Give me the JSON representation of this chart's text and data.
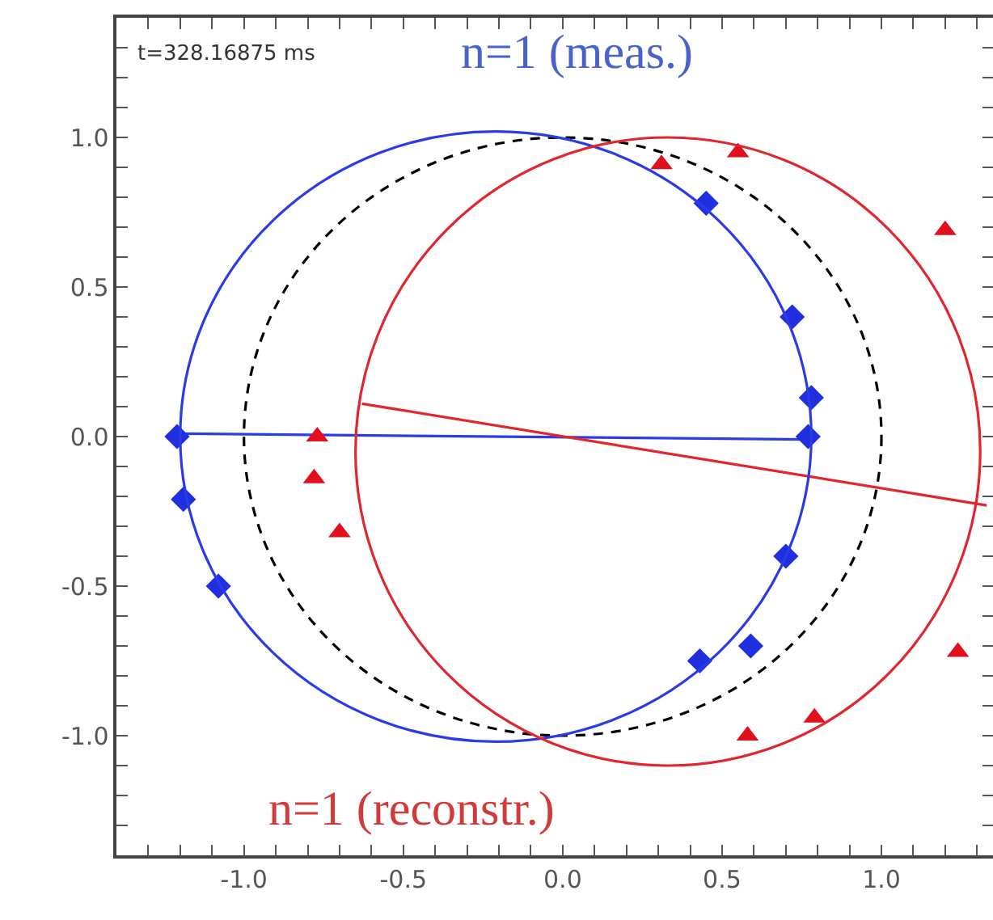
{
  "chart_data": {
    "type": "scatter",
    "annotations": [
      "t=328.16875 ms",
      "n=1 (meas.)",
      "n=1 (reconstr.)"
    ],
    "xlim": [
      -1.4,
      1.35
    ],
    "ylim": [
      -1.4,
      1.4
    ],
    "xticks": [
      {
        "value": -1.4,
        "label": null
      },
      {
        "value": -1.3,
        "label": null
      },
      {
        "value": -1.2,
        "label": null
      },
      {
        "value": -1.1,
        "label": null
      },
      {
        "value": -1,
        "label": "-1.0"
      },
      {
        "value": -0.9,
        "label": null
      },
      {
        "value": -0.8,
        "label": null
      },
      {
        "value": -0.7,
        "label": null
      },
      {
        "value": -0.6,
        "label": null
      },
      {
        "value": -0.5,
        "label": "-0.5"
      },
      {
        "value": -0.4,
        "label": null
      },
      {
        "value": -0.3,
        "label": null
      },
      {
        "value": -0.2,
        "label": null
      },
      {
        "value": -0.1,
        "label": null
      },
      {
        "value": 0,
        "label": "0.0"
      },
      {
        "value": 0.1,
        "label": null
      },
      {
        "value": 0.2,
        "label": null
      },
      {
        "value": 0.3,
        "label": null
      },
      {
        "value": 0.4,
        "label": null
      },
      {
        "value": 0.5,
        "label": "0.5"
      },
      {
        "value": 0.6,
        "label": null
      },
      {
        "value": 0.7,
        "label": null
      },
      {
        "value": 0.8,
        "label": null
      },
      {
        "value": 0.9,
        "label": null
      },
      {
        "value": 1,
        "label": "1.0"
      },
      {
        "value": 1.1,
        "label": null
      },
      {
        "value": 1.2,
        "label": null
      },
      {
        "value": 1.3,
        "label": null
      }
    ],
    "yticks": [
      {
        "value": -1.4,
        "label": null
      },
      {
        "value": -1.3,
        "label": null
      },
      {
        "value": -1.2,
        "label": null
      },
      {
        "value": -1.1,
        "label": null
      },
      {
        "value": -1,
        "label": "-1.0"
      },
      {
        "value": -0.9,
        "label": null
      },
      {
        "value": -0.8,
        "label": null
      },
      {
        "value": -0.7,
        "label": null
      },
      {
        "value": -0.6,
        "label": null
      },
      {
        "value": -0.5,
        "label": "-0.5"
      },
      {
        "value": -0.4,
        "label": null
      },
      {
        "value": -0.3,
        "label": null
      },
      {
        "value": -0.2,
        "label": null
      },
      {
        "value": -0.1,
        "label": null
      },
      {
        "value": 0,
        "label": "0.0"
      },
      {
        "value": 0.1,
        "label": null
      },
      {
        "value": 0.2,
        "label": null
      },
      {
        "value": 0.3,
        "label": null
      },
      {
        "value": 0.4,
        "label": null
      },
      {
        "value": 0.5,
        "label": "0.5"
      },
      {
        "value": 0.6,
        "label": null
      },
      {
        "value": 0.7,
        "label": null
      },
      {
        "value": 0.8,
        "label": null
      },
      {
        "value": 0.9,
        "label": null
      },
      {
        "value": 1,
        "label": "1.0"
      },
      {
        "value": 1.1,
        "label": null
      },
      {
        "value": 1.2,
        "label": null
      },
      {
        "value": 1.3,
        "label": null
      },
      {
        "value": 1.4,
        "label": null
      }
    ],
    "series": [
      {
        "type": "line",
        "color": "#2b3be6",
        "line_style": "solid",
        "marker": "none",
        "x": [
          -1.21,
          0.77
        ],
        "values": [
          0.01,
          -0.01
        ]
      },
      {
        "type": "line",
        "color": "#e0262e",
        "line_style": "solid",
        "marker": "none",
        "x": [
          -0.63,
          1.33
        ],
        "values": [
          0.11,
          -0.23
        ]
      },
      {
        "type": "scatter",
        "color": "#1f2fe0",
        "marker": "diamond",
        "x": [
          -1.21,
          -1.19,
          -1.08,
          0.45,
          0.72,
          0.78,
          0.77,
          0.7,
          0.43,
          0.59
        ],
        "values": [
          0,
          -0.21,
          -0.5,
          0.78,
          0.4,
          0.13,
          0,
          -0.4,
          -0.75,
          -0.7
        ]
      },
      {
        "type": "scatter",
        "color": "#e0101e",
        "marker": "triangle",
        "x": [
          0.31,
          0.55,
          1.2,
          -0.77,
          -0.78,
          -0.7,
          1.24,
          0.58,
          0.79
        ],
        "values": [
          0.91,
          0.95,
          0.69,
          0,
          -0.14,
          -0.32,
          -0.72,
          -1,
          -0.94
        ]
      }
    ],
    "grid": false
  }
}
